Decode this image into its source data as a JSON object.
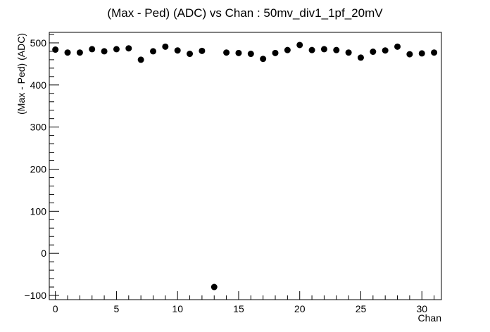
{
  "chart_data": {
    "type": "scatter",
    "title": "(Max - Ped) (ADC) vs Chan : 50mv_div1_1pf_20mV",
    "xlabel": "Chan",
    "ylabel": "(Max - Ped) (ADC)",
    "xlim": [
      -0.5,
      31.6
    ],
    "ylim": [
      -110,
      525
    ],
    "xticks": [
      0,
      5,
      10,
      15,
      20,
      25,
      30
    ],
    "xtick_labels": [
      "0",
      "5",
      "10",
      "15",
      "20",
      "25",
      "30"
    ],
    "yticks": [
      -100,
      0,
      100,
      200,
      300,
      400,
      500
    ],
    "ytick_labels": [
      "−100",
      "0",
      "100",
      "200",
      "300",
      "400",
      "500"
    ],
    "grid": false,
    "legend": "none",
    "marker_color": "#000000",
    "series": [
      {
        "x": [
          0,
          1,
          2,
          3,
          4,
          5,
          6,
          7,
          8,
          9,
          10,
          11,
          12,
          13,
          14,
          15,
          16,
          17,
          18,
          19,
          20,
          21,
          22,
          23,
          24,
          25,
          26,
          27,
          28,
          29,
          30,
          31
        ],
        "y": [
          484,
          477,
          477,
          485,
          480,
          485,
          487,
          460,
          480,
          491,
          482,
          474,
          481,
          -80,
          477,
          476,
          474,
          462,
          476,
          483,
          495,
          483,
          485,
          483,
          477,
          465,
          479,
          482,
          491,
          473,
          475,
          477
        ]
      }
    ]
  }
}
